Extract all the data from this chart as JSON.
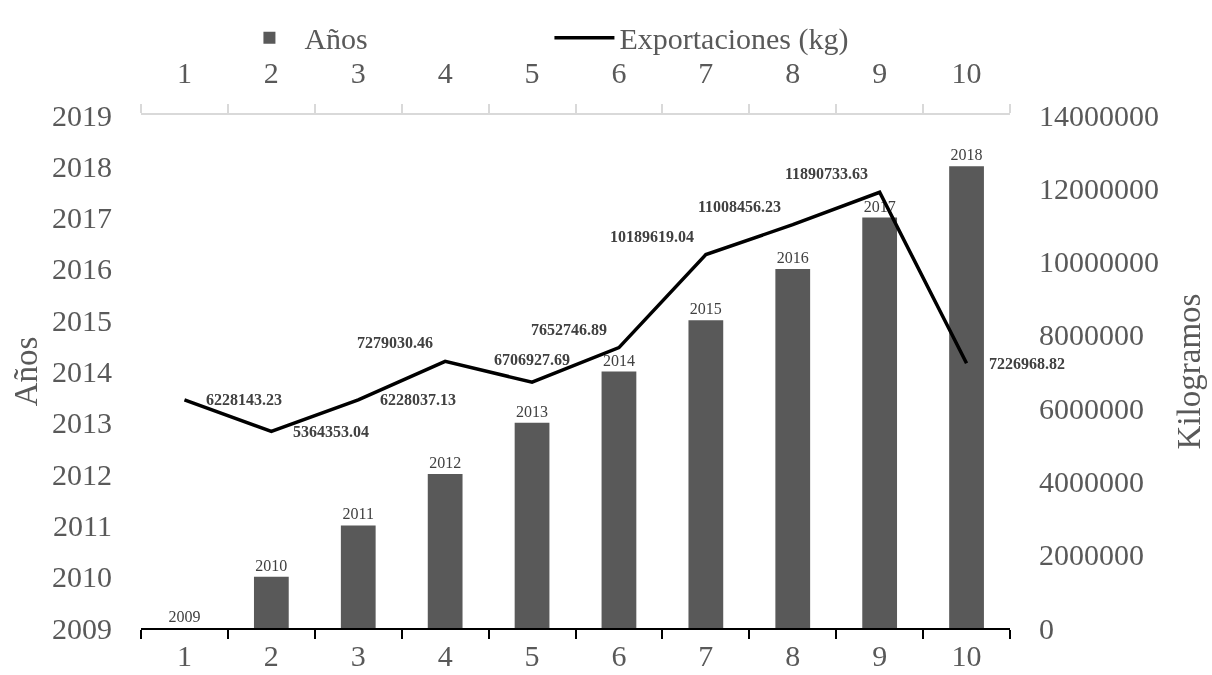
{
  "chart_data": {
    "type": "bar",
    "x": [
      1,
      2,
      3,
      4,
      5,
      6,
      7,
      8,
      9,
      10
    ],
    "xlim": [
      0.5,
      10.5
    ],
    "xticks": [
      1,
      2,
      3,
      4,
      5,
      6,
      7,
      8,
      9,
      10
    ],
    "x2lim": [
      0.5,
      10.5
    ],
    "x2ticks": [
      1,
      2,
      3,
      4,
      5,
      6,
      7,
      8,
      9,
      10
    ],
    "ylabel": "Años",
    "y2label": "Kilogramos",
    "ylim": [
      2009,
      2019
    ],
    "yticks": [
      2009,
      2010,
      2011,
      2012,
      2013,
      2014,
      2015,
      2016,
      2017,
      2018,
      2019
    ],
    "y2lim": [
      0,
      14000000
    ],
    "y2ticks": [
      0,
      2000000,
      4000000,
      6000000,
      8000000,
      10000000,
      12000000,
      14000000
    ],
    "series": [
      {
        "name": "Años",
        "color": "#595959",
        "values": [
          2009,
          2010,
          2011,
          2012,
          2013,
          2014,
          2015,
          2016,
          2017,
          2018
        ]
      },
      {
        "name": "Exportaciones (kg)",
        "type": "line",
        "axis": "y2",
        "color": "#000000",
        "values": [
          6228143.23,
          5364353.04,
          6228037.13,
          7279030.46,
          6706927.69,
          7652746.89,
          10189619.04,
          11008456.23,
          11890733.63,
          7226968.82
        ]
      }
    ],
    "data_labels": true,
    "legend": "top"
  }
}
